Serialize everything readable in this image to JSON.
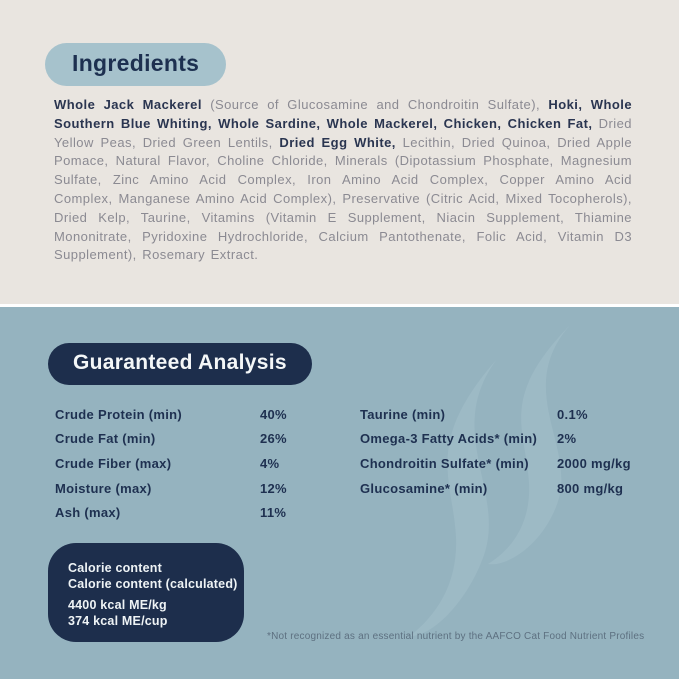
{
  "colors": {
    "page_bg": "#e9e5e0",
    "section_bg": "#95b3bf",
    "navy": "#1d2e4c",
    "pill_bg": "#a6c2cc",
    "body_text_gray": "#8b8a92",
    "body_text_bold_navy": "#2a3550",
    "watermark": "#a3bec9",
    "footnote_color": "#5d7080"
  },
  "ingredients": {
    "title": "Ingredients",
    "runs": [
      {
        "text": "Whole Jack Mackerel ",
        "bold": true
      },
      {
        "text": "(Source of Glucosamine and Chondroitin Sulfate), ",
        "bold": false
      },
      {
        "text": "Hoki, Whole Southern Blue Whiting, Whole Sardine, Whole Mackerel, Chicken, Chicken Fat, ",
        "bold": true
      },
      {
        "text": "Dried Yellow Peas, Dried Green Lentils, ",
        "bold": false
      },
      {
        "text": "Dried Egg White, ",
        "bold": true
      },
      {
        "text": "Lecithin, Dried Quinoa, Dried Apple Pomace, Natural Flavor, Choline Chloride, Minerals (Dipotassium Phosphate, Magnesium Sulfate, Zinc Amino Acid Complex, Iron Amino Acid Complex, Copper Amino Acid Complex, Manganese Amino Acid Complex), Preservative (Citric Acid, Mixed Tocopherols), Dried Kelp, Taurine, Vitamins (Vitamin E Supplement, Niacin Supplement, Thiamine Mononitrate, Pyridoxine Hydrochloride, Calcium Pantothenate, Folic Acid, Vitamin D3 Supplement), Rosemary Extract.",
        "bold": false
      }
    ]
  },
  "analysis": {
    "title": "Guaranteed Analysis",
    "left_rows": [
      {
        "label": "Crude Protein (min)",
        "value": "40%"
      },
      {
        "label": "Crude Fat (min)",
        "value": "26%"
      },
      {
        "label": "Crude Fiber (max)",
        "value": "4%"
      },
      {
        "label": "Moisture (max)",
        "value": "12%"
      },
      {
        "label": "Ash (max)",
        "value": "11%"
      }
    ],
    "right_rows": [
      {
        "label": "Taurine (min)",
        "value": "0.1%"
      },
      {
        "label": "Omega-3 Fatty Acids* (min)",
        "value": "2%"
      },
      {
        "label": "Chondroitin Sulfate* (min)",
        "value": "2000 mg/kg"
      },
      {
        "label": "Glucosamine* (min)",
        "value": "800 mg/kg"
      }
    ],
    "calorie_box": {
      "lines_top": [
        "Calorie content",
        "Calorie content (calculated)"
      ],
      "lines_bottom": [
        "4400 kcal ME/kg",
        "374 kcal ME/cup"
      ]
    },
    "footnote": "*Not recognized as an essential nutrient by the AAFCO Cat Food Nutrient Profiles"
  }
}
